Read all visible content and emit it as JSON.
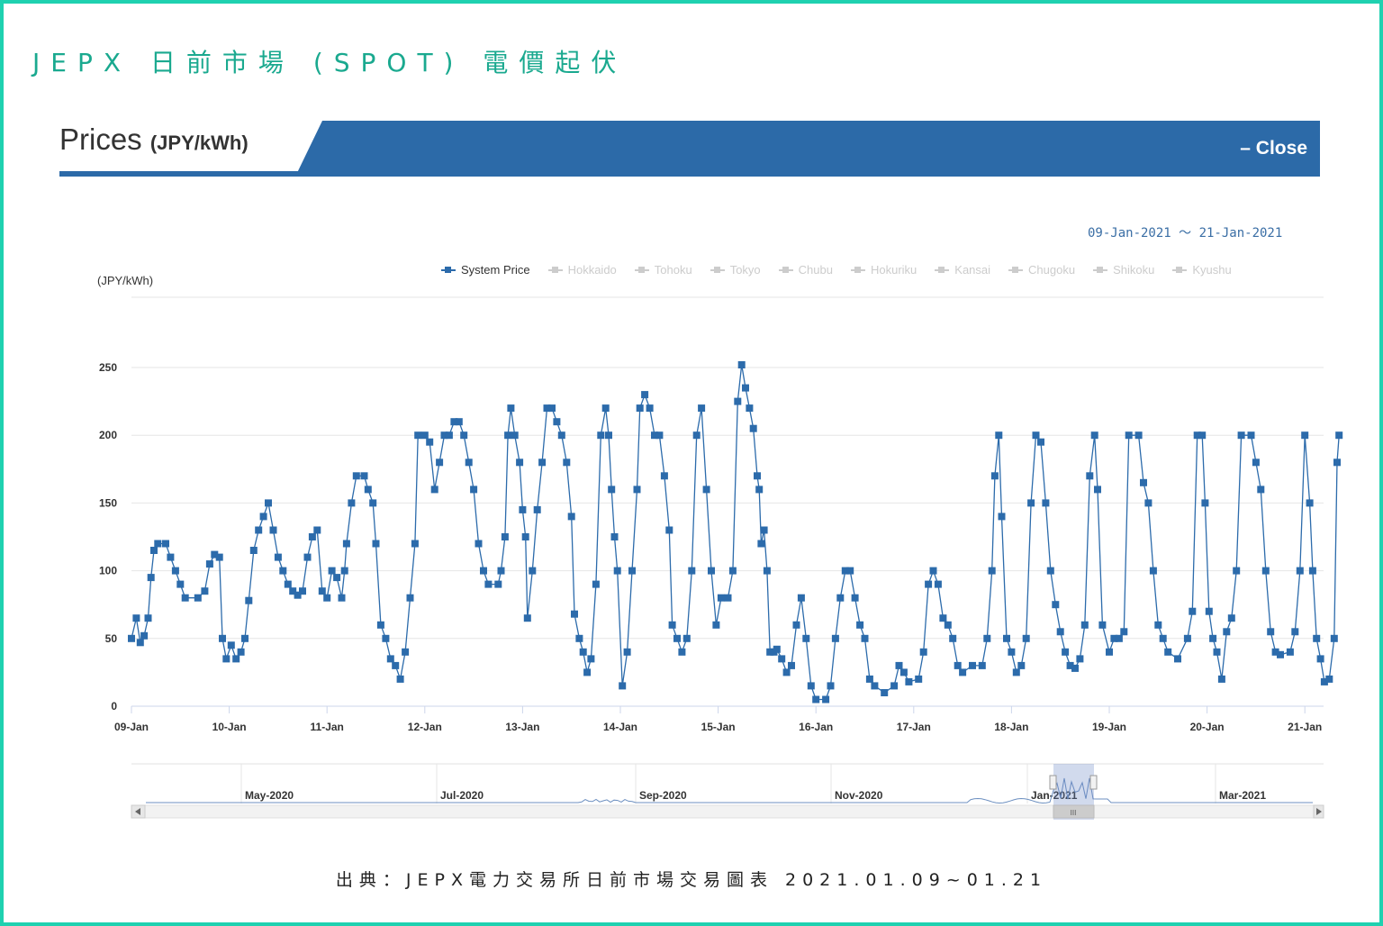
{
  "page": {
    "title": "JEPX 日前市場 (SPOT) 電價起伏",
    "source": "出典：JEPX電力交易所日前市場交易圖表 2021.01.09~01.21"
  },
  "header": {
    "label": "Prices",
    "unit": "(JPY/kWh)",
    "close_label": "– Close",
    "bar_color": "#2c6aa8"
  },
  "date_range": {
    "text": "09-Jan-2021 ～ 21-Jan-2021"
  },
  "legend": {
    "items": [
      {
        "label": "System Price",
        "active": true
      },
      {
        "label": "Hokkaido",
        "active": false
      },
      {
        "label": "Tohoku",
        "active": false
      },
      {
        "label": "Tokyo",
        "active": false
      },
      {
        "label": "Chubu",
        "active": false
      },
      {
        "label": "Hokuriku",
        "active": false
      },
      {
        "label": "Kansai",
        "active": false
      },
      {
        "label": "Chugoku",
        "active": false
      },
      {
        "label": "Shikoku",
        "active": false
      },
      {
        "label": "Kyushu",
        "active": false
      }
    ]
  },
  "navigator": {
    "labels": [
      "May-2020",
      "Jul-2020",
      "Sep-2020",
      "Nov-2020",
      "Jan-2021",
      "Mar-2021"
    ],
    "handle_label": "III"
  },
  "chart_data": {
    "type": "line",
    "ylabel": "(JPY/kWh)",
    "ylim": [
      0,
      250
    ],
    "yticks": [
      0,
      50,
      100,
      150,
      200,
      250
    ],
    "x_labels": [
      "09-Jan",
      "10-Jan",
      "11-Jan",
      "12-Jan",
      "13-Jan",
      "14-Jan",
      "15-Jan",
      "16-Jan",
      "17-Jan",
      "18-Jan",
      "19-Jan",
      "20-Jan",
      "21-Jan"
    ],
    "grid": true,
    "marker": "square",
    "series_color": "#2c6bab",
    "series": [
      {
        "name": "System Price",
        "points": [
          [
            0,
            50
          ],
          [
            0.05,
            65
          ],
          [
            0.09,
            47
          ],
          [
            0.13,
            52
          ],
          [
            0.17,
            65
          ],
          [
            0.2,
            95
          ],
          [
            0.23,
            115
          ],
          [
            0.27,
            120
          ],
          [
            0.35,
            120
          ],
          [
            0.4,
            110
          ],
          [
            0.45,
            100
          ],
          [
            0.5,
            90
          ],
          [
            0.55,
            80
          ],
          [
            0.68,
            80
          ],
          [
            0.75,
            85
          ],
          [
            0.8,
            105
          ],
          [
            0.85,
            112
          ],
          [
            0.9,
            110
          ],
          [
            0.93,
            50
          ],
          [
            0.97,
            35
          ],
          [
            1.02,
            45
          ],
          [
            1.07,
            35
          ],
          [
            1.12,
            40
          ],
          [
            1.16,
            50
          ],
          [
            1.2,
            78
          ],
          [
            1.25,
            115
          ],
          [
            1.3,
            130
          ],
          [
            1.35,
            140
          ],
          [
            1.4,
            150
          ],
          [
            1.45,
            130
          ],
          [
            1.5,
            110
          ],
          [
            1.55,
            100
          ],
          [
            1.6,
            90
          ],
          [
            1.65,
            85
          ],
          [
            1.7,
            82
          ],
          [
            1.75,
            85
          ],
          [
            1.8,
            110
          ],
          [
            1.85,
            125
          ],
          [
            1.9,
            130
          ],
          [
            1.95,
            85
          ],
          [
            2.0,
            80
          ],
          [
            2.05,
            100
          ],
          [
            2.1,
            95
          ],
          [
            2.15,
            80
          ],
          [
            2.18,
            100
          ],
          [
            2.2,
            120
          ],
          [
            2.25,
            150
          ],
          [
            2.3,
            170
          ],
          [
            2.38,
            170
          ],
          [
            2.42,
            160
          ],
          [
            2.47,
            150
          ],
          [
            2.5,
            120
          ],
          [
            2.55,
            60
          ],
          [
            2.6,
            50
          ],
          [
            2.65,
            35
          ],
          [
            2.7,
            30
          ],
          [
            2.75,
            20
          ],
          [
            2.8,
            40
          ],
          [
            2.85,
            80
          ],
          [
            2.9,
            120
          ],
          [
            2.93,
            200
          ],
          [
            3.0,
            200
          ],
          [
            3.05,
            195
          ],
          [
            3.1,
            160
          ],
          [
            3.15,
            180
          ],
          [
            3.2,
            200
          ],
          [
            3.25,
            200
          ],
          [
            3.3,
            210
          ],
          [
            3.35,
            210
          ],
          [
            3.4,
            200
          ],
          [
            3.45,
            180
          ],
          [
            3.5,
            160
          ],
          [
            3.55,
            120
          ],
          [
            3.6,
            100
          ],
          [
            3.65,
            90
          ],
          [
            3.75,
            90
          ],
          [
            3.78,
            100
          ],
          [
            3.82,
            125
          ],
          [
            3.85,
            200
          ],
          [
            3.88,
            220
          ],
          [
            3.92,
            200
          ],
          [
            3.97,
            180
          ],
          [
            4.0,
            145
          ],
          [
            4.03,
            125
          ],
          [
            4.05,
            65
          ],
          [
            4.1,
            100
          ],
          [
            4.15,
            145
          ],
          [
            4.2,
            180
          ],
          [
            4.25,
            220
          ],
          [
            4.3,
            220
          ],
          [
            4.35,
            210
          ],
          [
            4.4,
            200
          ],
          [
            4.45,
            180
          ],
          [
            4.5,
            140
          ],
          [
            4.53,
            68
          ],
          [
            4.58,
            50
          ],
          [
            4.62,
            40
          ],
          [
            4.66,
            25
          ],
          [
            4.7,
            35
          ],
          [
            4.75,
            90
          ],
          [
            4.8,
            200
          ],
          [
            4.85,
            220
          ],
          [
            4.88,
            200
          ],
          [
            4.91,
            160
          ],
          [
            4.94,
            125
          ],
          [
            4.97,
            100
          ],
          [
            5.02,
            15
          ],
          [
            5.07,
            40
          ],
          [
            5.12,
            100
          ],
          [
            5.17,
            160
          ],
          [
            5.2,
            220
          ],
          [
            5.25,
            230
          ],
          [
            5.3,
            220
          ],
          [
            5.35,
            200
          ],
          [
            5.4,
            200
          ],
          [
            5.45,
            170
          ],
          [
            5.5,
            130
          ],
          [
            5.53,
            60
          ],
          [
            5.58,
            50
          ],
          [
            5.63,
            40
          ],
          [
            5.68,
            50
          ],
          [
            5.73,
            100
          ],
          [
            5.78,
            200
          ],
          [
            5.83,
            220
          ],
          [
            5.88,
            160
          ],
          [
            5.93,
            100
          ],
          [
            5.98,
            60
          ],
          [
            6.03,
            80
          ],
          [
            6.1,
            80
          ],
          [
            6.15,
            100
          ],
          [
            6.2,
            225
          ],
          [
            6.24,
            252
          ],
          [
            6.28,
            235
          ],
          [
            6.32,
            220
          ],
          [
            6.36,
            205
          ],
          [
            6.4,
            170
          ],
          [
            6.42,
            160
          ],
          [
            6.44,
            120
          ],
          [
            6.47,
            130
          ],
          [
            6.5,
            100
          ],
          [
            6.53,
            40
          ],
          [
            6.57,
            40
          ],
          [
            6.6,
            42
          ],
          [
            6.65,
            35
          ],
          [
            6.7,
            25
          ],
          [
            6.75,
            30
          ],
          [
            6.8,
            60
          ],
          [
            6.85,
            80
          ],
          [
            6.9,
            50
          ],
          [
            6.95,
            15
          ],
          [
            7.0,
            5
          ],
          [
            7.1,
            5
          ],
          [
            7.15,
            15
          ],
          [
            7.2,
            50
          ],
          [
            7.25,
            80
          ],
          [
            7.3,
            100
          ],
          [
            7.35,
            100
          ],
          [
            7.4,
            80
          ],
          [
            7.45,
            60
          ],
          [
            7.5,
            50
          ],
          [
            7.55,
            20
          ],
          [
            7.6,
            15
          ],
          [
            7.7,
            10
          ],
          [
            7.8,
            15
          ],
          [
            7.85,
            30
          ],
          [
            7.9,
            25
          ],
          [
            7.95,
            18
          ],
          [
            8.05,
            20
          ],
          [
            8.1,
            40
          ],
          [
            8.15,
            90
          ],
          [
            8.2,
            100
          ],
          [
            8.25,
            90
          ],
          [
            8.3,
            65
          ],
          [
            8.35,
            60
          ],
          [
            8.4,
            50
          ],
          [
            8.45,
            30
          ],
          [
            8.5,
            25
          ],
          [
            8.6,
            30
          ],
          [
            8.7,
            30
          ],
          [
            8.75,
            50
          ],
          [
            8.8,
            100
          ],
          [
            8.83,
            170
          ],
          [
            8.87,
            200
          ],
          [
            8.9,
            140
          ],
          [
            8.95,
            50
          ],
          [
            9.0,
            40
          ],
          [
            9.05,
            25
          ],
          [
            9.1,
            30
          ],
          [
            9.15,
            50
          ],
          [
            9.2,
            150
          ],
          [
            9.25,
            200
          ],
          [
            9.3,
            195
          ],
          [
            9.35,
            150
          ],
          [
            9.4,
            100
          ],
          [
            9.45,
            75
          ],
          [
            9.5,
            55
          ],
          [
            9.55,
            40
          ],
          [
            9.6,
            30
          ],
          [
            9.65,
            28
          ],
          [
            9.7,
            35
          ],
          [
            9.75,
            60
          ],
          [
            9.8,
            170
          ],
          [
            9.85,
            200
          ],
          [
            9.88,
            160
          ],
          [
            9.93,
            60
          ],
          [
            10.0,
            40
          ],
          [
            10.05,
            50
          ],
          [
            10.1,
            50
          ],
          [
            10.15,
            55
          ],
          [
            10.2,
            200
          ],
          [
            10.3,
            200
          ],
          [
            10.35,
            165
          ],
          [
            10.4,
            150
          ],
          [
            10.45,
            100
          ],
          [
            10.5,
            60
          ],
          [
            10.55,
            50
          ],
          [
            10.6,
            40
          ],
          [
            10.7,
            35
          ],
          [
            10.8,
            50
          ],
          [
            10.85,
            70
          ],
          [
            10.9,
            200
          ],
          [
            10.95,
            200
          ],
          [
            10.98,
            150
          ],
          [
            11.02,
            70
          ],
          [
            11.06,
            50
          ],
          [
            11.1,
            40
          ],
          [
            11.15,
            20
          ],
          [
            11.2,
            55
          ],
          [
            11.25,
            65
          ],
          [
            11.3,
            100
          ],
          [
            11.35,
            200
          ],
          [
            11.45,
            200
          ],
          [
            11.5,
            180
          ],
          [
            11.55,
            160
          ],
          [
            11.6,
            100
          ],
          [
            11.65,
            55
          ],
          [
            11.7,
            40
          ],
          [
            11.75,
            38
          ],
          [
            11.85,
            40
          ],
          [
            11.9,
            55
          ],
          [
            11.95,
            100
          ],
          [
            12.0,
            200
          ],
          [
            12.05,
            150
          ],
          [
            12.08,
            100
          ],
          [
            12.12,
            50
          ],
          [
            12.16,
            35
          ],
          [
            12.2,
            18
          ],
          [
            12.25,
            20
          ],
          [
            12.3,
            50
          ],
          [
            12.33,
            180
          ],
          [
            12.35,
            200
          ]
        ]
      }
    ]
  }
}
